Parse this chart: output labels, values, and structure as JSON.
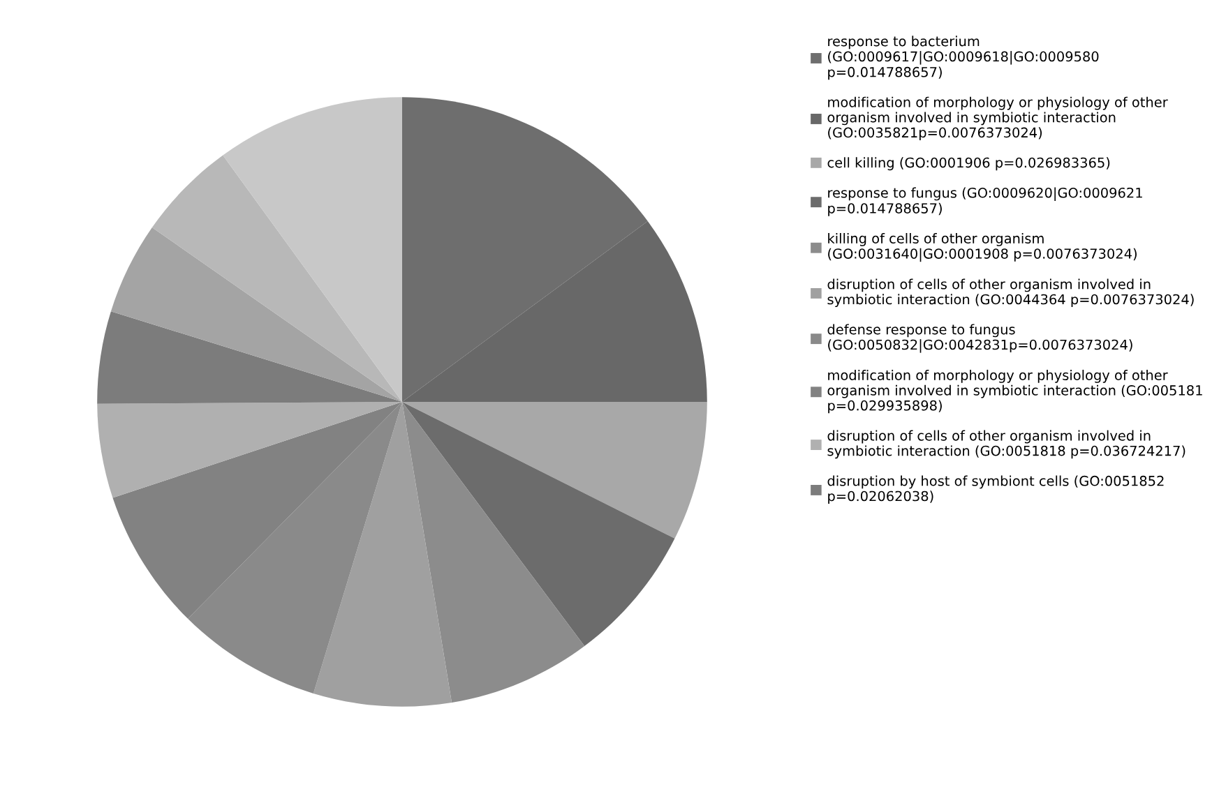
{
  "chart_data": {
    "type": "pie",
    "categories": [
      "response to bacterium\n(GO:0009617|GO:0009618|GO:0009580\np=0.014788657)",
      "modification of morphology or physiology of other\norganism involved in symbiotic interaction\n(GO:0035821p=0.0076373024)",
      "cell killing (GO:0001906 p=0.026983365)",
      "response to fungus (GO:0009620|GO:0009621\np=0.014788657)",
      "killing of cells of other organism\n(GO:0031640|GO:0001908 p=0.0076373024)",
      "disruption of cells of other organism involved in\nsymbiotic interaction (GO:0044364 p=0.0076373024)",
      "defense response to fungus\n(GO:0050832|GO:0042831p=0.0076373024)",
      "modification of morphology or physiology of other\norganism involved in symbiotic interaction (GO:005181\np=0.029935898)",
      "disruption of cells of other organism involved in\nsymbiotic interaction (GO:0051818 p=0.036724217)",
      "disruption by host of symbiont cells (GO:0051852\np=0.02062038)",
      null,
      null,
      null
    ],
    "values": [
      14.9,
      10.1,
      7.4,
      7.4,
      7.6,
      7.3,
      7.7,
      7.5,
      5.0,
      4.9,
      4.9,
      5.3,
      10.0
    ],
    "colors": [
      "#6e6e6e",
      "#686868",
      "#a8a8a8",
      "#6c6c6c",
      "#8c8c8c",
      "#a0a0a0",
      "#8a8a8a",
      "#828282",
      "#b0b0b0",
      "#7c7c7c",
      "#a4a4a4",
      "#b8b8b8",
      "#c8c8c8"
    ],
    "legend": "right"
  }
}
